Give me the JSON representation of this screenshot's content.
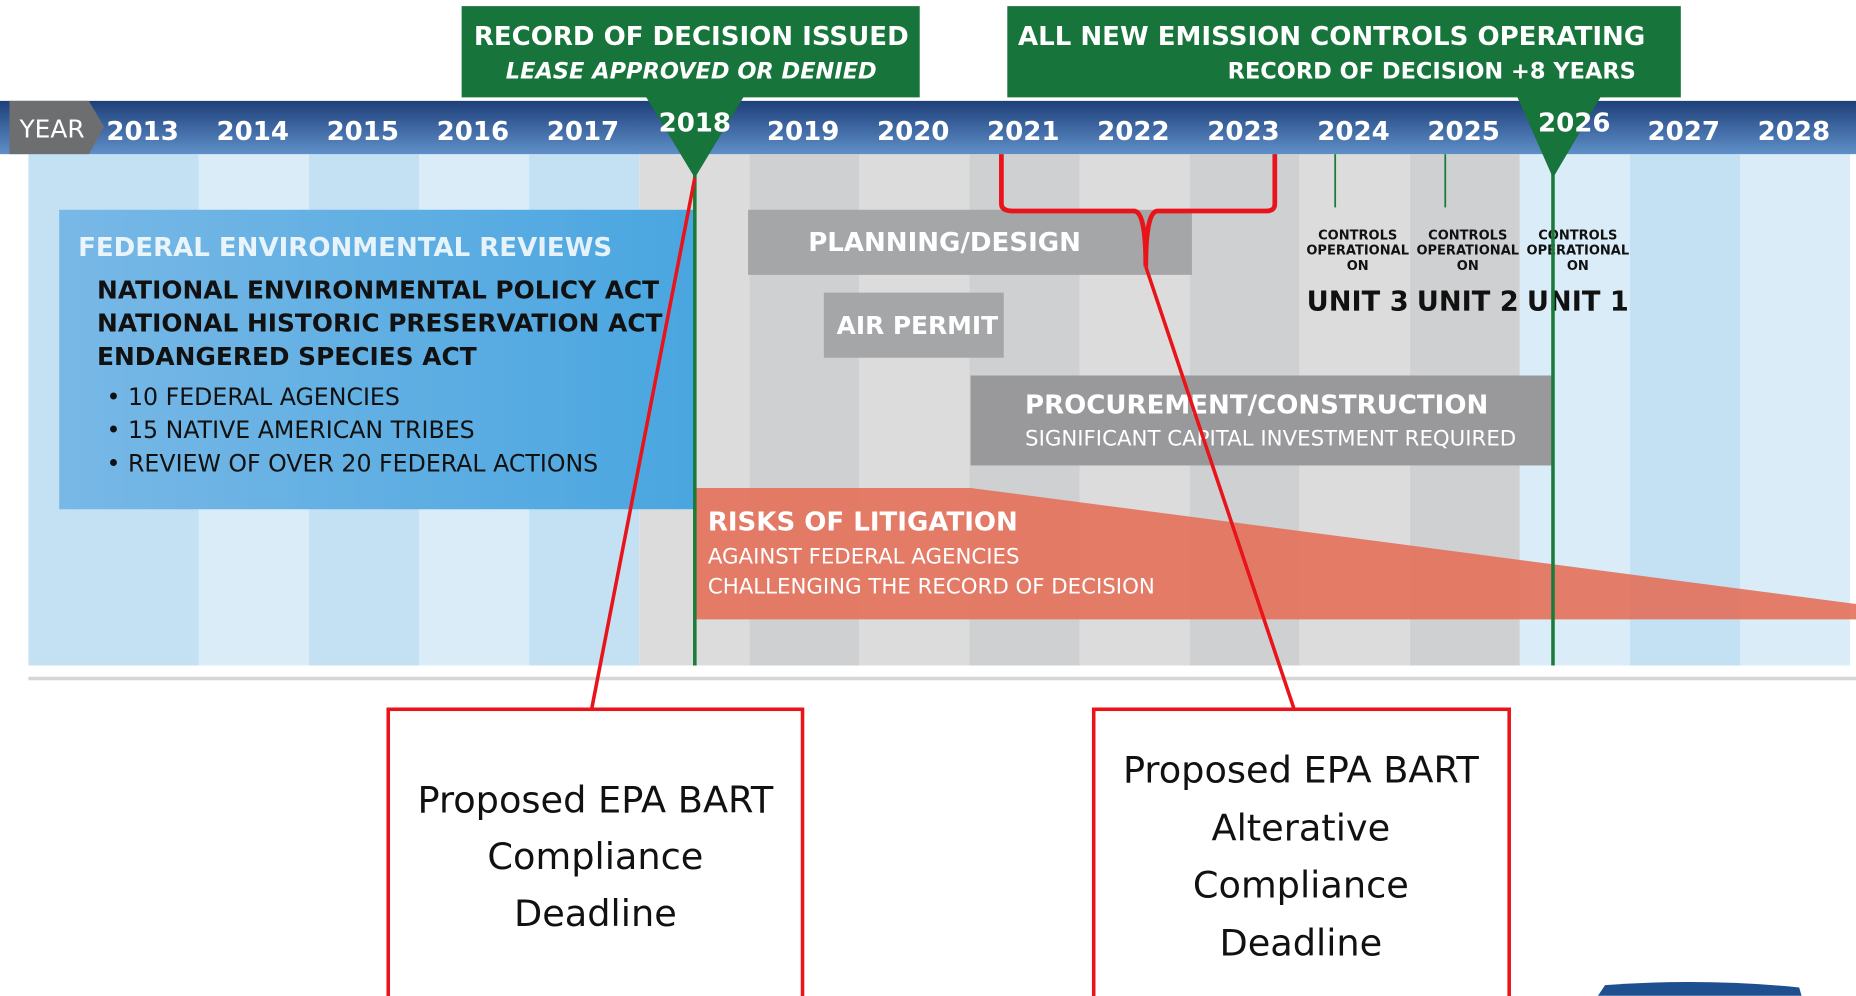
{
  "header": {
    "label": "YEAR",
    "years": [
      "2013",
      "2014",
      "2015",
      "2016",
      "2017",
      "2018",
      "2019",
      "2020",
      "2021",
      "2022",
      "2023",
      "2024",
      "2025",
      "2026",
      "2027",
      "2028"
    ]
  },
  "callouts": [
    {
      "title": "RECORD OF DECISION ISSUED",
      "subtitle": "LEASE APPROVED OR DENIED"
    },
    {
      "title": "ALL NEW EMISSION CONTROLS OPERATING",
      "subtitle": "RECORD OF DECISION +8 YEARS"
    }
  ],
  "federal": {
    "title": "FEDERAL ENVIRONMENTAL REVIEWS",
    "acts": [
      "NATIONAL ENVIRONMENTAL POLICY ACT",
      "NATIONAL HISTORIC PRESERVATION ACT",
      "ENDANGERED SPECIES ACT"
    ],
    "bullets": [
      "10 FEDERAL AGENCIES",
      "15 NATIVE AMERICAN TRIBES",
      "REVIEW OF OVER 20 FEDERAL ACTIONS"
    ]
  },
  "phases": {
    "planning": "PLANNING/DESIGN",
    "air_permit": "AIR PERMIT",
    "procurement": {
      "title": "PROCUREMENT/CONSTRUCTION",
      "subtitle": "SIGNIFICANT CAPITAL INVESTMENT REQUIRED"
    }
  },
  "units": [
    {
      "caption": [
        "CONTROLS",
        "OPERATIONAL",
        "ON"
      ],
      "name": "UNIT 3"
    },
    {
      "caption": [
        "CONTROLS",
        "OPERATIONAL",
        "ON"
      ],
      "name": "UNIT 2"
    },
    {
      "caption": [
        "CONTROLS",
        "OPERATIONAL",
        "ON"
      ],
      "name": "UNIT 1"
    }
  ],
  "litigation": {
    "title": "RISKS OF LITIGATION",
    "lines": [
      "AGAINST FEDERAL AGENCIES",
      "CHALLENGING THE RECORD OF DECISION"
    ]
  },
  "notes": [
    {
      "lines": [
        "Proposed EPA BART",
        "Compliance",
        "Deadline"
      ]
    },
    {
      "lines": [
        "Proposed EPA BART",
        "Alterative",
        "Compliance",
        "Deadline"
      ]
    }
  ]
}
